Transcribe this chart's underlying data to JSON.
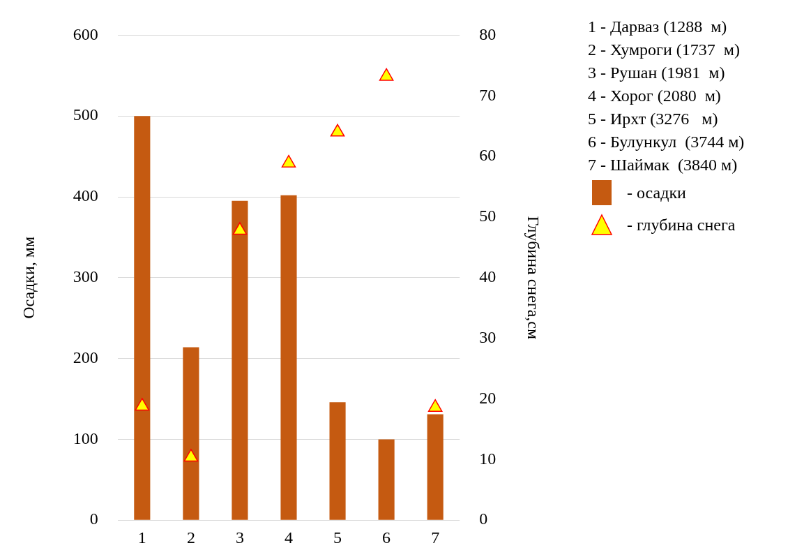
{
  "chart_data": {
    "type": "bar",
    "categories": [
      "1",
      "2",
      "3",
      "4",
      "5",
      "6",
      "7"
    ],
    "ylabel": "Осадки, мм",
    "y2label": "Глубина снега,см",
    "ylim": [
      0,
      600
    ],
    "yticks": [
      0,
      100,
      200,
      300,
      400,
      500,
      600
    ],
    "y2lim": [
      0,
      80
    ],
    "y2ticks": [
      0,
      10,
      20,
      30,
      40,
      50,
      60,
      70,
      80
    ],
    "grid": "y",
    "legend": "right",
    "annotations": [
      "1 - Дарваз (1288  м)",
      "2 - Хумроги (1737  м)",
      "3 - Рушан (1981  м)",
      "4 - Хорог (2080  м)",
      "5 - Ирхт (3276   м)",
      "6 - Булункул  (3744 м)",
      "7 - Шаймак  (3840 м)"
    ],
    "series": [
      {
        "name": "- осадки",
        "color": "#c55a11",
        "values": [
          500,
          214,
          395,
          402,
          146,
          100,
          131
        ]
      },
      {
        "name": "- глубина снега",
        "type": "scatter",
        "axis": "y2",
        "marker": "triangle",
        "color": "#ffff00",
        "values": [
          18.8,
          10.4,
          47.8,
          58.9,
          64,
          73.2,
          18.6
        ]
      }
    ]
  }
}
